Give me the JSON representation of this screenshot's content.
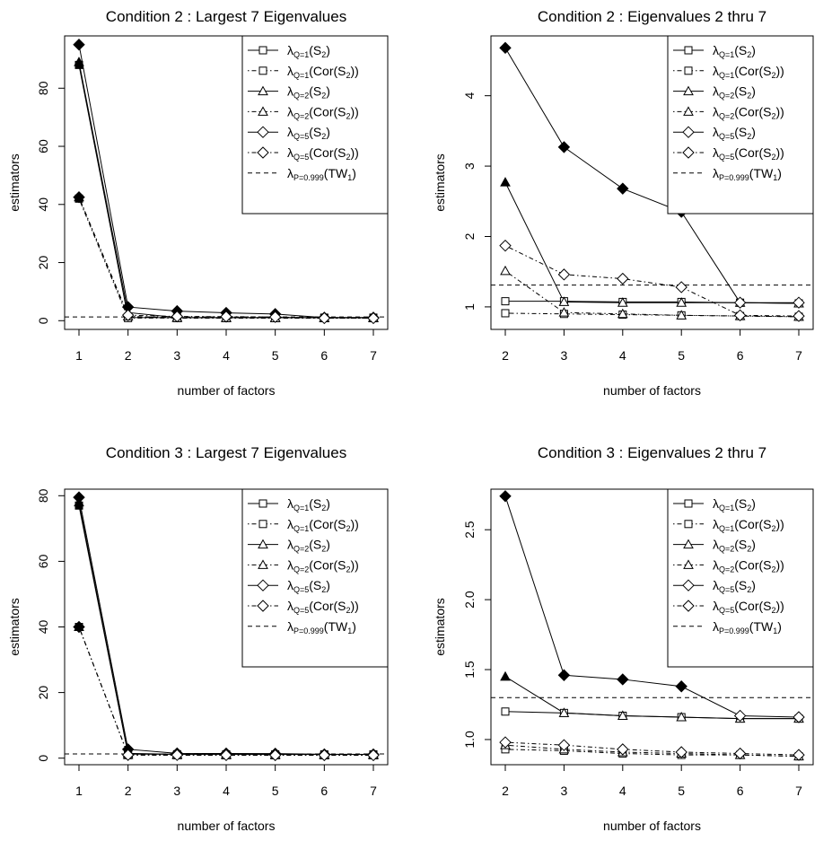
{
  "legend_labels": [
    {
      "sym": "λ",
      "sub": "Q=1",
      "pre": "(S",
      "sub2": "2",
      "post": ")",
      "marker": "square",
      "filled": false,
      "dash": "solid"
    },
    {
      "sym": "λ",
      "sub": "Q=1",
      "pre": "(Cor(S",
      "sub2": "2",
      "post": "))",
      "marker": "square",
      "filled": false,
      "dash": "dotdash"
    },
    {
      "sym": "λ",
      "sub": "Q=2",
      "pre": "(S",
      "sub2": "2",
      "post": ")",
      "marker": "triangle",
      "filled": false,
      "dash": "solid"
    },
    {
      "sym": "λ",
      "sub": "Q=2",
      "pre": "(Cor(S",
      "sub2": "2",
      "post": "))",
      "marker": "triangle",
      "filled": false,
      "dash": "dotdash"
    },
    {
      "sym": "λ",
      "sub": "Q=5",
      "pre": "(S",
      "sub2": "2",
      "post": ")",
      "marker": "diamond",
      "filled": false,
      "dash": "solid"
    },
    {
      "sym": "λ",
      "sub": "Q=5",
      "pre": "(Cor(S",
      "sub2": "2",
      "post": "))",
      "marker": "diamond",
      "filled": false,
      "dash": "dotdash"
    },
    {
      "sym": "λ",
      "sub": "P=0.999",
      "pre": "(TW",
      "sub2": "1",
      "post": ")",
      "marker": "none",
      "filled": false,
      "dash": "dashed"
    }
  ],
  "chart_data": [
    {
      "type": "line",
      "title": "Condition 2 : Largest 7 Eigenvalues",
      "xlabel": "number of factors",
      "ylabel": "estimators",
      "x": [
        1,
        2,
        3,
        4,
        5,
        6,
        7
      ],
      "xlim": [
        1,
        7
      ],
      "ylim": [
        -3,
        98
      ],
      "xticks": [
        1,
        2,
        3,
        4,
        5,
        6,
        7
      ],
      "yticks": [
        0,
        20,
        40,
        60,
        80
      ],
      "legend": "top-right",
      "hline": 1.3,
      "series": [
        {
          "values": [
            88,
            1.1,
            1.05,
            1.05,
            1.05,
            1.05,
            1.05
          ],
          "marker": "square",
          "dash": "solid"
        },
        {
          "values": [
            42,
            0.9,
            0.9,
            0.88,
            0.87,
            0.86,
            0.85
          ],
          "marker": "square",
          "dash": "dotdash"
        },
        {
          "values": [
            89,
            2.8,
            1.1,
            1.05,
            1.05,
            1.05,
            1.05
          ],
          "marker": "triangle",
          "dash": "solid"
        },
        {
          "values": [
            42.5,
            1.5,
            0.92,
            0.9,
            0.88,
            0.87,
            0.86
          ],
          "marker": "triangle",
          "dash": "dotdash"
        },
        {
          "values": [
            95,
            4.7,
            3.3,
            2.7,
            2.3,
            1.05,
            1.05
          ],
          "marker": "diamond",
          "dash": "solid"
        },
        {
          "values": [
            42.5,
            1.9,
            1.45,
            1.4,
            1.27,
            0.88,
            0.87
          ],
          "marker": "diamond",
          "dash": "dotdash"
        }
      ]
    },
    {
      "type": "line",
      "title": "Condition  2  : Eigenvalues  2 thru 7",
      "xlabel": "number of factors",
      "ylabel": "estimators",
      "x": [
        2,
        3,
        4,
        5,
        6,
        7
      ],
      "xlim": [
        2,
        7
      ],
      "ylim": [
        0.68,
        4.85
      ],
      "xticks": [
        2,
        3,
        4,
        5,
        6,
        7
      ],
      "yticks": [
        1,
        2,
        3,
        4
      ],
      "legend": "top-right",
      "hline": 1.31,
      "series": [
        {
          "values": [
            1.08,
            1.08,
            1.07,
            1.07,
            1.06,
            1.05
          ],
          "marker": "square",
          "dash": "solid"
        },
        {
          "values": [
            0.91,
            0.9,
            0.89,
            0.88,
            0.87,
            0.86
          ],
          "marker": "square",
          "dash": "dotdash"
        },
        {
          "values": [
            2.77,
            1.07,
            1.06,
            1.06,
            1.06,
            1.05
          ],
          "marker": "triangle",
          "dash": "solid"
        },
        {
          "values": [
            1.51,
            0.92,
            0.9,
            0.88,
            0.87,
            0.86
          ],
          "marker": "triangle",
          "dash": "dotdash"
        },
        {
          "values": [
            4.68,
            3.27,
            2.68,
            2.35,
            1.06,
            1.06
          ],
          "marker": "diamond",
          "dash": "solid"
        },
        {
          "values": [
            1.87,
            1.46,
            1.4,
            1.28,
            0.88,
            0.87
          ],
          "marker": "diamond",
          "dash": "dotdash"
        }
      ]
    },
    {
      "type": "line",
      "title": "Condition 3 : Largest 7 Eigenvalues",
      "xlabel": "number of factors",
      "ylabel": "estimators",
      "x": [
        1,
        2,
        3,
        4,
        5,
        6,
        7
      ],
      "xlim": [
        1,
        7
      ],
      "ylim": [
        -2,
        82
      ],
      "xticks": [
        1,
        2,
        3,
        4,
        5,
        6,
        7
      ],
      "yticks": [
        0,
        20,
        40,
        60,
        80
      ],
      "legend": "top-right",
      "hline": 1.3,
      "series": [
        {
          "values": [
            77,
            1.2,
            1.19,
            1.17,
            1.16,
            1.15,
            1.15
          ],
          "marker": "square",
          "dash": "solid"
        },
        {
          "values": [
            40,
            0.93,
            0.92,
            0.9,
            0.89,
            0.89,
            0.88
          ],
          "marker": "square",
          "dash": "dotdash"
        },
        {
          "values": [
            78,
            1.45,
            1.19,
            1.17,
            1.16,
            1.15,
            1.15
          ],
          "marker": "triangle",
          "dash": "solid"
        },
        {
          "values": [
            40,
            0.96,
            0.93,
            0.91,
            0.9,
            0.89,
            0.88
          ],
          "marker": "triangle",
          "dash": "dotdash"
        },
        {
          "values": [
            79.5,
            2.7,
            1.45,
            1.43,
            1.38,
            1.17,
            1.16
          ],
          "marker": "diamond",
          "dash": "solid"
        },
        {
          "values": [
            40,
            0.98,
            0.96,
            0.93,
            0.91,
            0.9,
            0.89
          ],
          "marker": "diamond",
          "dash": "dotdash"
        }
      ]
    },
    {
      "type": "line",
      "title": "Condition  3  : Eigenvalues  2 thru 7",
      "xlabel": "number of factors",
      "ylabel": "estimators",
      "x": [
        2,
        3,
        4,
        5,
        6,
        7
      ],
      "xlim": [
        2,
        7
      ],
      "ylim": [
        0.82,
        2.79
      ],
      "xticks": [
        2,
        3,
        4,
        5,
        6,
        7
      ],
      "yticks": [
        1.0,
        1.5,
        2.0,
        2.5
      ],
      "ytick_labels": [
        "1.0",
        "1.5",
        "2.0",
        "2.5"
      ],
      "legend": "top-right",
      "hline": 1.3,
      "series": [
        {
          "values": [
            1.2,
            1.19,
            1.17,
            1.16,
            1.15,
            1.15
          ],
          "marker": "square",
          "dash": "solid"
        },
        {
          "values": [
            0.93,
            0.92,
            0.9,
            0.89,
            0.89,
            0.88
          ],
          "marker": "square",
          "dash": "dotdash"
        },
        {
          "values": [
            1.45,
            1.19,
            1.17,
            1.16,
            1.15,
            1.15
          ],
          "marker": "triangle",
          "dash": "solid"
        },
        {
          "values": [
            0.96,
            0.93,
            0.91,
            0.9,
            0.89,
            0.88
          ],
          "marker": "triangle",
          "dash": "dotdash"
        },
        {
          "values": [
            2.74,
            1.46,
            1.43,
            1.38,
            1.17,
            1.16
          ],
          "marker": "diamond",
          "dash": "solid"
        },
        {
          "values": [
            0.98,
            0.96,
            0.93,
            0.91,
            0.9,
            0.89
          ],
          "marker": "diamond",
          "dash": "dotdash"
        }
      ]
    }
  ]
}
